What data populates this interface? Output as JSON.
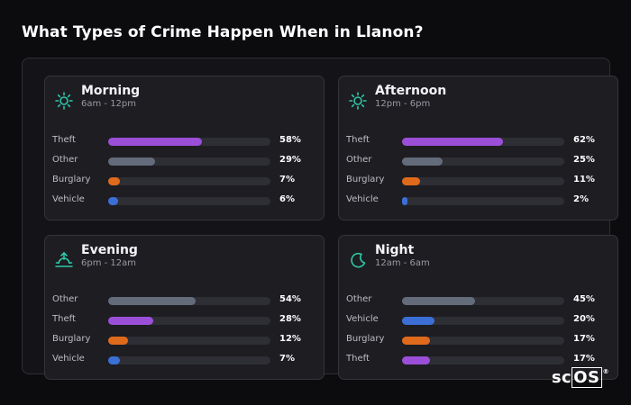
{
  "header": {
    "title": "What Types of Crime Happen When in Llanon?"
  },
  "colors": {
    "Theft": "#9b4fd8",
    "Other": "#646b7b",
    "Burglary": "#e06a1c",
    "Vehicle": "#3b6fd6",
    "accent": "#2ec7a6"
  },
  "chart_data": {
    "type": "bar",
    "panels": [
      {
        "name": "Morning",
        "range": "6am - 12pm",
        "icon": "sun-icon",
        "rows": [
          {
            "label": "Theft",
            "value": 58,
            "display": "58%"
          },
          {
            "label": "Other",
            "value": 29,
            "display": "29%"
          },
          {
            "label": "Burglary",
            "value": 7,
            "display": "7%"
          },
          {
            "label": "Vehicle",
            "value": 6,
            "display": "6%"
          }
        ]
      },
      {
        "name": "Afternoon",
        "range": "12pm - 6pm",
        "icon": "sun-icon",
        "rows": [
          {
            "label": "Theft",
            "value": 62,
            "display": "62%"
          },
          {
            "label": "Other",
            "value": 25,
            "display": "25%"
          },
          {
            "label": "Burglary",
            "value": 11,
            "display": "11%"
          },
          {
            "label": "Vehicle",
            "value": 2,
            "display": "2%"
          }
        ]
      },
      {
        "name": "Evening",
        "range": "6pm - 12am",
        "icon": "sunset-icon",
        "rows": [
          {
            "label": "Other",
            "value": 54,
            "display": "54%"
          },
          {
            "label": "Theft",
            "value": 28,
            "display": "28%"
          },
          {
            "label": "Burglary",
            "value": 12,
            "display": "12%"
          },
          {
            "label": "Vehicle",
            "value": 7,
            "display": "7%"
          }
        ]
      },
      {
        "name": "Night",
        "range": "12am - 6am",
        "icon": "moon-icon",
        "rows": [
          {
            "label": "Other",
            "value": 45,
            "display": "45%"
          },
          {
            "label": "Vehicle",
            "value": 20,
            "display": "20%"
          },
          {
            "label": "Burglary",
            "value": 17,
            "display": "17%"
          },
          {
            "label": "Theft",
            "value": 17,
            "display": "17%"
          }
        ]
      }
    ],
    "xlim": [
      0,
      100
    ]
  },
  "logo": {
    "text": "scOS"
  }
}
